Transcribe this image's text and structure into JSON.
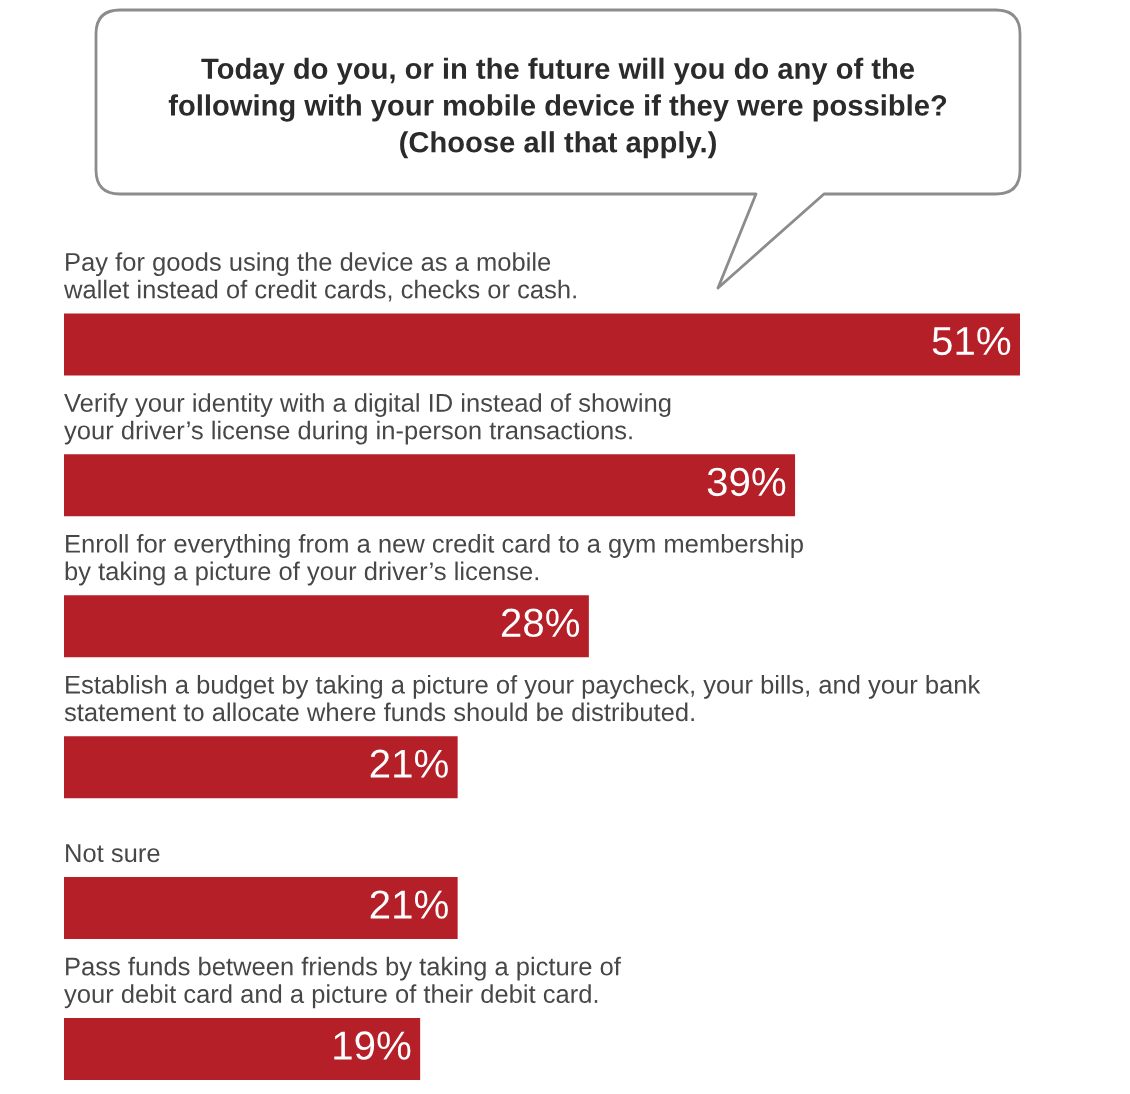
{
  "chart_data": {
    "type": "bar",
    "orientation": "horizontal",
    "title": "Today do you, or in the future will you do any of the\nfollowing with your mobile device if they were possible?\n(Choose all that apply.)",
    "categories": [
      "Pay for goods using the device as a mobile\nwallet instead of credit cards, checks or cash.",
      "Verify your identity with a digital ID instead of showing\nyour driver’s license during in-person transactions.",
      "Enroll for everything from a new credit card to a gym membership\nby taking a picture of your driver’s license.",
      "Establish a budget by taking a picture of your paycheck, your bills, and your bank\nstatement to allocate where funds should be distributed.",
      "Not sure",
      "Pass funds between friends by taking a picture of\nyour debit card and a picture of their debit card."
    ],
    "values": [
      51,
      39,
      28,
      21,
      21,
      19
    ],
    "value_labels": [
      "51%",
      "39%",
      "28%",
      "21%",
      "21%",
      "19%"
    ],
    "color": "#b51f27"
  }
}
